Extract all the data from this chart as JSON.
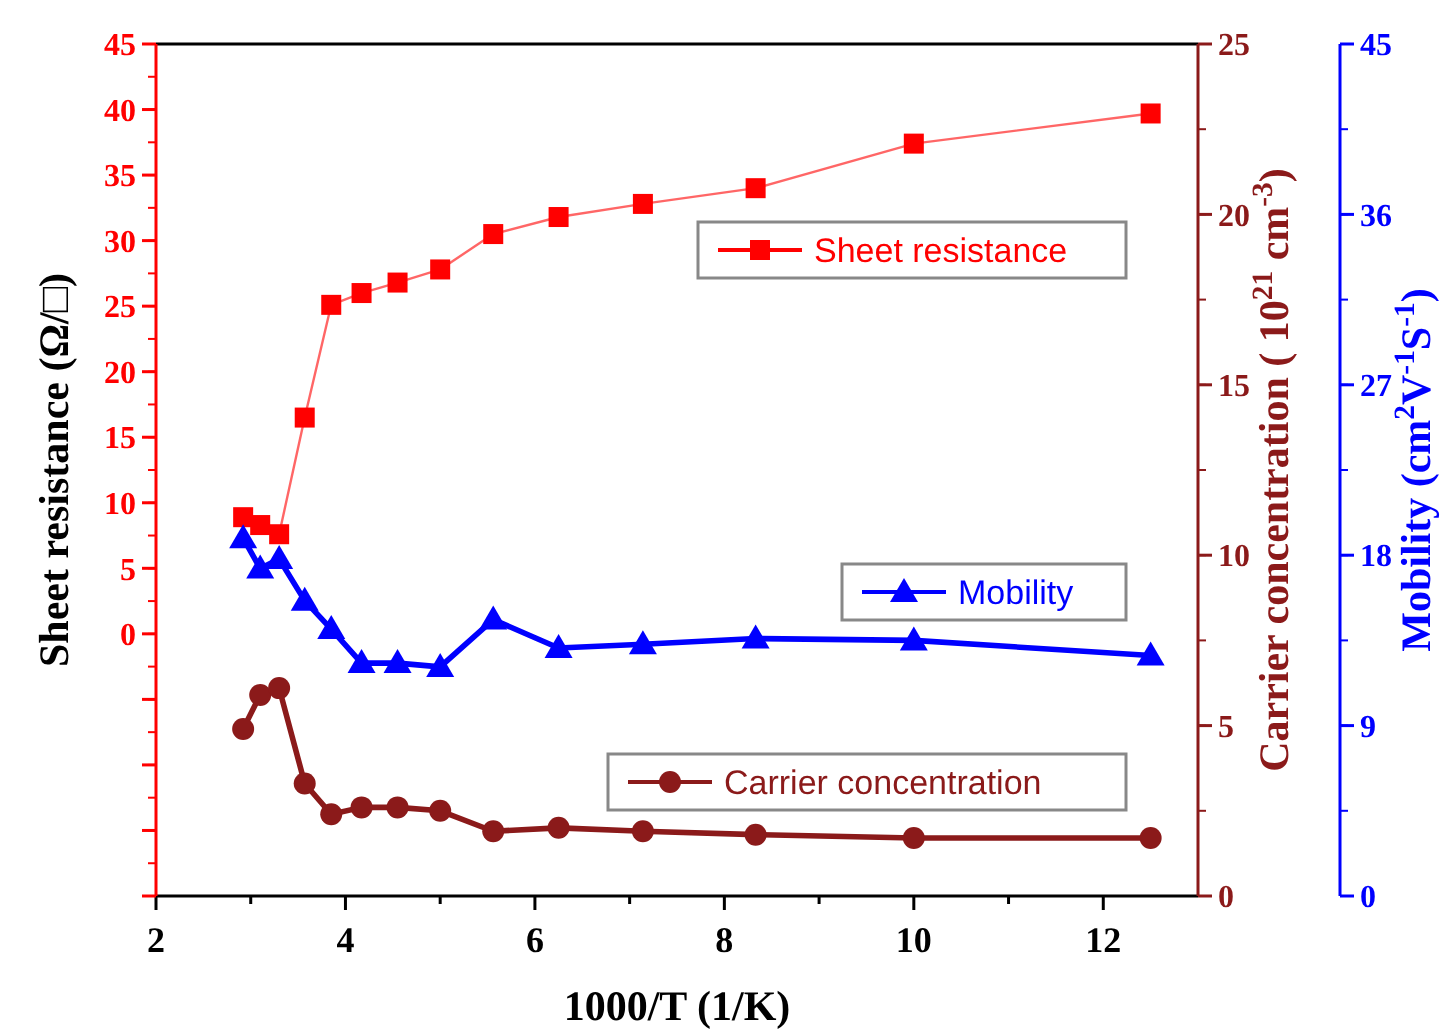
{
  "chart_data": {
    "type": "line",
    "xlabel": "1000/T (1/K)",
    "ylabel": "Sheet resistance (Ω/□)",
    "y2label": "Carrier concentration ( 10$^{21}$ cm$^{-3}$)",
    "y3label": "Mobility (cm$^{2}$V$^{-1}$S$^{-1}$)",
    "x": [
      2.92,
      3.1,
      3.3,
      3.57,
      3.85,
      4.17,
      4.55,
      5.0,
      5.56,
      6.25,
      7.14,
      8.33,
      10,
      12.5
    ],
    "xlim": [
      2,
      13
    ],
    "xticks": [
      2,
      {
        "value": 3,
        "label": null
      },
      4,
      {
        "value": 5,
        "label": null
      },
      6,
      {
        "value": 7,
        "label": null
      },
      8,
      {
        "value": 9,
        "label": null
      },
      10,
      {
        "value": 11,
        "label": null
      },
      12
    ],
    "ylim": [
      -20,
      45
    ],
    "yticks": [
      {
        "value": -20,
        "label": null
      },
      {
        "value": -15,
        "label": null
      },
      {
        "value": -10,
        "label": null
      },
      {
        "value": -5,
        "label": null
      },
      0,
      5,
      10,
      15,
      20,
      25,
      30,
      35,
      40,
      45
    ],
    "y2lim": [
      0,
      25
    ],
    "y2ticks": [
      0,
      5,
      10,
      15,
      20,
      25
    ],
    "y3lim": [
      0,
      45
    ],
    "y3ticks": [
      0,
      9,
      18,
      27,
      36,
      45
    ],
    "legend": "right",
    "marker": "square",
    "line_style": "solid",
    "grid": false,
    "series": [
      {
        "name": "Sheet resistance",
        "color": "#ff0000",
        "axis": "y",
        "values": [
          8.9,
          8.3,
          7.6,
          16.5,
          25.1,
          26.0,
          26.8,
          27.8,
          30.5,
          31.8,
          32.8,
          34.0,
          37.4,
          39.7
        ]
      },
      {
        "name": "Mobility",
        "color": "#0000ff",
        "marker": "triangle",
        "axis": "y3",
        "values": [
          18.9,
          17.3,
          17.8,
          15.6,
          14.1,
          12.3,
          12.3,
          12.1,
          14.6,
          13.1,
          13.3,
          13.6,
          13.5,
          12.7
        ]
      },
      {
        "name": "Carrier concentration",
        "color": "#8b1a1a",
        "marker": "circle",
        "axis": "y2",
        "values": [
          4.9,
          5.9,
          6.1,
          3.3,
          2.4,
          2.6,
          2.6,
          2.5,
          1.9,
          2.0,
          1.9,
          1.8,
          1.7,
          1.7
        ]
      }
    ]
  }
}
